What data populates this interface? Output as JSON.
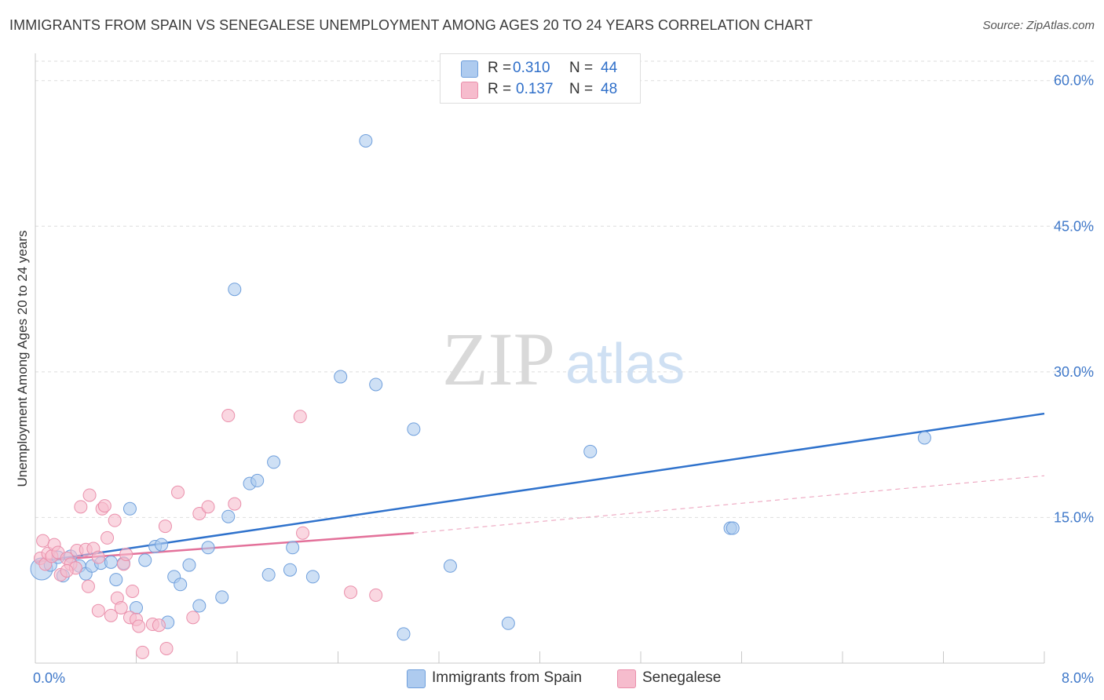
{
  "header": {
    "title": "IMMIGRANTS FROM SPAIN VS SENEGALESE UNEMPLOYMENT AMONG AGES 20 TO 24 YEARS CORRELATION CHART",
    "source": "Source: ZipAtlas.com"
  },
  "watermark": {
    "zip": "ZIP",
    "atlas": "atlas"
  },
  "legend": {
    "items": [
      {
        "r_label": "R =",
        "r_value": "0.310",
        "n_label": "N =",
        "n_value": "44"
      },
      {
        "r_label": "R =",
        "r_value": "0.137",
        "n_label": "N =",
        "n_value": "48"
      }
    ]
  },
  "colors": {
    "blue_fill": "#aecbef",
    "blue_stroke": "#6f9fdc",
    "blue_line": "#2f72cc",
    "pink_fill": "#f6bccd",
    "pink_stroke": "#ea8fab",
    "pink_line": "#e3719a",
    "axis_value": "#3f78c9",
    "grid": "#dedede"
  },
  "chart_data": {
    "type": "scatter",
    "title": "IMMIGRANTS FROM SPAIN VS SENEGALESE UNEMPLOYMENT AMONG AGES 20 TO 24 YEARS CORRELATION CHART",
    "xlabel": "",
    "ylabel": "Unemployment Among Ages 20 to 24 years",
    "xlim": [
      0,
      8
    ],
    "ylim": [
      0,
      62
    ],
    "x_tick_labels": [
      {
        "value": 0,
        "label": "0.0%"
      },
      {
        "value": 8,
        "label": "8.0%"
      }
    ],
    "y_tick_labels": [
      {
        "value": 15,
        "label": "15.0%"
      },
      {
        "value": 30,
        "label": "30.0%"
      },
      {
        "value": 45,
        "label": "45.0%"
      },
      {
        "value": 60,
        "label": "60.0%"
      }
    ],
    "y_gridlines": [
      15,
      30,
      45,
      60,
      62
    ],
    "x_minor_ticks": [
      0.8,
      1.6,
      2.4,
      3.2,
      4.0,
      4.8,
      5.6,
      6.4,
      7.2,
      8.0
    ],
    "series": [
      {
        "name": "Immigrants from Spain",
        "color": "blue",
        "R": 0.31,
        "N": 44,
        "trend": {
          "x": [
            0,
            8
          ],
          "y": [
            10.4,
            25.7
          ],
          "style": "solid"
        },
        "points": [
          {
            "x": 0.05,
            "y": 9.7,
            "big": true
          },
          {
            "x": 0.12,
            "y": 10.1
          },
          {
            "x": 0.18,
            "y": 10.9
          },
          {
            "x": 0.22,
            "y": 9.0
          },
          {
            "x": 0.28,
            "y": 11.0
          },
          {
            "x": 0.35,
            "y": 10.0
          },
          {
            "x": 0.4,
            "y": 9.2
          },
          {
            "x": 0.45,
            "y": 10.0
          },
          {
            "x": 0.52,
            "y": 10.3
          },
          {
            "x": 0.6,
            "y": 10.4
          },
          {
            "x": 0.64,
            "y": 8.6
          },
          {
            "x": 0.7,
            "y": 10.3
          },
          {
            "x": 0.75,
            "y": 15.9
          },
          {
            "x": 0.8,
            "y": 5.7
          },
          {
            "x": 0.87,
            "y": 10.6
          },
          {
            "x": 0.95,
            "y": 12.0
          },
          {
            "x": 1.0,
            "y": 12.2
          },
          {
            "x": 1.05,
            "y": 4.2
          },
          {
            "x": 1.1,
            "y": 8.9
          },
          {
            "x": 1.15,
            "y": 8.1
          },
          {
            "x": 1.22,
            "y": 10.1
          },
          {
            "x": 1.3,
            "y": 5.9
          },
          {
            "x": 1.37,
            "y": 11.9
          },
          {
            "x": 1.48,
            "y": 6.8
          },
          {
            "x": 1.53,
            "y": 15.1
          },
          {
            "x": 1.58,
            "y": 38.5
          },
          {
            "x": 1.7,
            "y": 18.5
          },
          {
            "x": 1.76,
            "y": 18.8
          },
          {
            "x": 1.85,
            "y": 9.1
          },
          {
            "x": 1.89,
            "y": 20.7
          },
          {
            "x": 2.02,
            "y": 9.6
          },
          {
            "x": 2.04,
            "y": 11.9
          },
          {
            "x": 2.2,
            "y": 8.9
          },
          {
            "x": 2.42,
            "y": 29.5
          },
          {
            "x": 2.62,
            "y": 53.8
          },
          {
            "x": 2.7,
            "y": 28.7
          },
          {
            "x": 2.92,
            "y": 3.0
          },
          {
            "x": 3.0,
            "y": 24.1
          },
          {
            "x": 3.29,
            "y": 10.0
          },
          {
            "x": 3.75,
            "y": 4.1
          },
          {
            "x": 4.4,
            "y": 21.8
          },
          {
            "x": 5.51,
            "y": 13.9
          },
          {
            "x": 5.53,
            "y": 13.9
          },
          {
            "x": 7.05,
            "y": 23.2
          }
        ]
      },
      {
        "name": "Senegalese",
        "color": "pink",
        "R": 0.137,
        "N": 48,
        "trend": {
          "x": [
            0,
            3.0
          ],
          "y": [
            10.5,
            13.4
          ],
          "style": "solid"
        },
        "trend_extended": {
          "x": [
            3.0,
            8
          ],
          "y": [
            13.4,
            19.3
          ],
          "style": "dashed"
        },
        "points": [
          {
            "x": 0.04,
            "y": 10.8
          },
          {
            "x": 0.06,
            "y": 12.6
          },
          {
            "x": 0.08,
            "y": 10.2
          },
          {
            "x": 0.1,
            "y": 11.3
          },
          {
            "x": 0.13,
            "y": 11.0
          },
          {
            "x": 0.15,
            "y": 12.2
          },
          {
            "x": 0.18,
            "y": 11.4
          },
          {
            "x": 0.2,
            "y": 9.1
          },
          {
            "x": 0.25,
            "y": 10.8
          },
          {
            "x": 0.28,
            "y": 10.2
          },
          {
            "x": 0.32,
            "y": 9.8
          },
          {
            "x": 0.33,
            "y": 11.6
          },
          {
            "x": 0.36,
            "y": 16.1
          },
          {
            "x": 0.4,
            "y": 11.7
          },
          {
            "x": 0.42,
            "y": 7.9
          },
          {
            "x": 0.43,
            "y": 17.3
          },
          {
            "x": 0.46,
            "y": 11.8
          },
          {
            "x": 0.5,
            "y": 10.9
          },
          {
            "x": 0.5,
            "y": 5.4
          },
          {
            "x": 0.53,
            "y": 15.9
          },
          {
            "x": 0.55,
            "y": 16.2
          },
          {
            "x": 0.57,
            "y": 12.9
          },
          {
            "x": 0.6,
            "y": 4.9
          },
          {
            "x": 0.63,
            "y": 14.7
          },
          {
            "x": 0.65,
            "y": 6.7
          },
          {
            "x": 0.68,
            "y": 5.7
          },
          {
            "x": 0.7,
            "y": 10.2
          },
          {
            "x": 0.72,
            "y": 11.2
          },
          {
            "x": 0.75,
            "y": 4.7
          },
          {
            "x": 0.77,
            "y": 7.4
          },
          {
            "x": 0.8,
            "y": 4.5
          },
          {
            "x": 0.82,
            "y": 3.8
          },
          {
            "x": 0.85,
            "y": 1.1
          },
          {
            "x": 0.93,
            "y": 4.0
          },
          {
            "x": 0.98,
            "y": 3.9
          },
          {
            "x": 1.03,
            "y": 14.1
          },
          {
            "x": 1.04,
            "y": 1.5
          },
          {
            "x": 1.13,
            "y": 17.6
          },
          {
            "x": 1.25,
            "y": 4.7
          },
          {
            "x": 1.3,
            "y": 15.4
          },
          {
            "x": 1.37,
            "y": 16.1
          },
          {
            "x": 1.53,
            "y": 25.5
          },
          {
            "x": 1.58,
            "y": 16.4
          },
          {
            "x": 2.1,
            "y": 25.4
          },
          {
            "x": 2.12,
            "y": 13.4
          },
          {
            "x": 2.5,
            "y": 7.3
          },
          {
            "x": 2.7,
            "y": 7.0
          },
          {
            "x": 0.25,
            "y": 9.5
          }
        ]
      }
    ]
  },
  "bottom_legend": {
    "items": [
      {
        "label": "Immigrants from Spain",
        "color": "blue"
      },
      {
        "label": "Senegalese",
        "color": "pink"
      }
    ]
  }
}
